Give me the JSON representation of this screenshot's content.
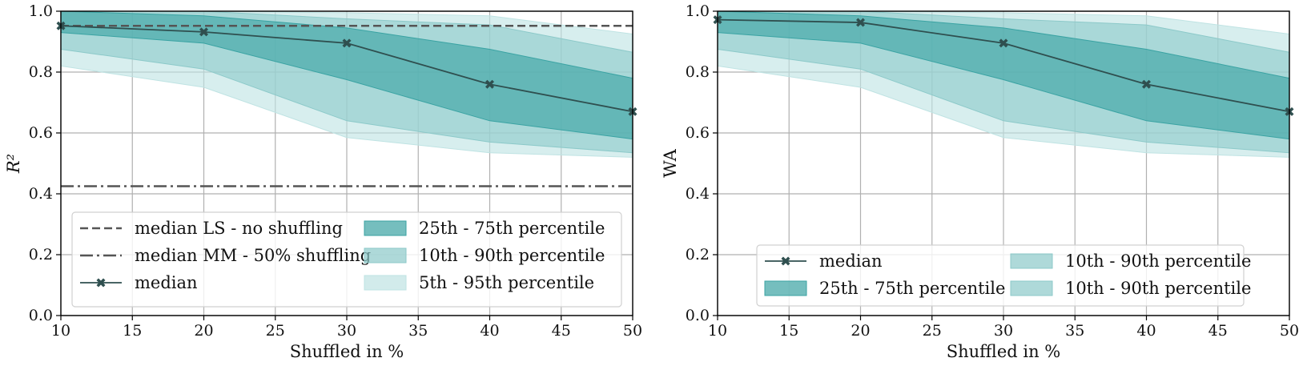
{
  "colors": {
    "band_25_75": "#3aa3a3",
    "band_10_90": "#8cc9c9",
    "band_5_95": "#bfe3e3",
    "median_line": "#2f4f4f",
    "ref_line": "#555555",
    "grid": "#b0b0b0"
  },
  "chart_data": [
    {
      "type": "area",
      "xlabel": "Shuffled in %",
      "ylabel": "R²",
      "xlim": [
        10,
        50
      ],
      "ylim": [
        0.0,
        1.0
      ],
      "xticks": [
        "10",
        "15",
        "20",
        "25",
        "30",
        "35",
        "40",
        "45",
        "50"
      ],
      "yticks": [
        "0.0",
        "0.2",
        "0.4",
        "0.6",
        "0.8",
        "1.0"
      ],
      "grid": true,
      "legend_position": "lower-center",
      "x": [
        10,
        20,
        30,
        40,
        50
      ],
      "median": [
        0.952,
        0.932,
        0.895,
        0.76,
        0.67
      ],
      "bands": [
        {
          "name": "5th - 95th percentile",
          "lower": [
            0.82,
            0.75,
            0.585,
            0.535,
            0.52
          ],
          "upper": [
            1.0,
            1.0,
            0.995,
            0.985,
            0.925
          ]
        },
        {
          "name": "10th - 90th percentile",
          "lower": [
            0.875,
            0.81,
            0.64,
            0.57,
            0.535
          ],
          "upper": [
            1.0,
            1.0,
            0.975,
            0.955,
            0.865
          ]
        },
        {
          "name": "25th - 75th percentile",
          "lower": [
            0.93,
            0.895,
            0.775,
            0.64,
            0.58
          ],
          "upper": [
            1.0,
            0.985,
            0.945,
            0.875,
            0.78
          ]
        }
      ],
      "reference_lines": [
        {
          "name": "median LS - no shuffling",
          "value": 0.952,
          "style": "dashed"
        },
        {
          "name": "median MM - 50% shuffling",
          "value": 0.425,
          "style": "dashdot"
        }
      ],
      "legend": {
        "left": [
          "median LS - no shuffling",
          "median MM - 50% shuffling",
          "median"
        ],
        "right": [
          "25th - 75th percentile",
          "10th - 90th percentile",
          "5th - 95th percentile"
        ]
      }
    },
    {
      "type": "area",
      "xlabel": "Shuffled in %",
      "ylabel": "WA",
      "xlim": [
        10,
        50
      ],
      "ylim": [
        0.0,
        1.0
      ],
      "xticks": [
        "10",
        "15",
        "20",
        "25",
        "30",
        "35",
        "40",
        "45",
        "50"
      ],
      "yticks": [
        "0.0",
        "0.2",
        "0.4",
        "0.6",
        "0.8",
        "1.0"
      ],
      "grid": true,
      "legend_position": "lower-center",
      "x": [
        10,
        20,
        30,
        40,
        50
      ],
      "median": [
        0.972,
        0.963,
        0.895,
        0.76,
        0.67
      ],
      "bands": [
        {
          "name": "5th - 95th percentile",
          "lower": [
            0.82,
            0.75,
            0.585,
            0.535,
            0.52
          ],
          "upper": [
            1.0,
            1.0,
            0.995,
            0.985,
            0.925
          ]
        },
        {
          "name": "10th - 90th percentile",
          "lower": [
            0.875,
            0.81,
            0.64,
            0.57,
            0.535
          ],
          "upper": [
            1.0,
            1.0,
            0.975,
            0.955,
            0.865
          ]
        },
        {
          "name": "25th - 75th percentile",
          "lower": [
            0.93,
            0.895,
            0.775,
            0.64,
            0.58
          ],
          "upper": [
            1.0,
            0.985,
            0.945,
            0.875,
            0.78
          ]
        }
      ],
      "reference_lines": [],
      "legend": {
        "left": [
          "median",
          "25th - 75th percentile"
        ],
        "right": [
          "10th - 90th percentile",
          "10th - 90th percentile"
        ]
      }
    }
  ]
}
